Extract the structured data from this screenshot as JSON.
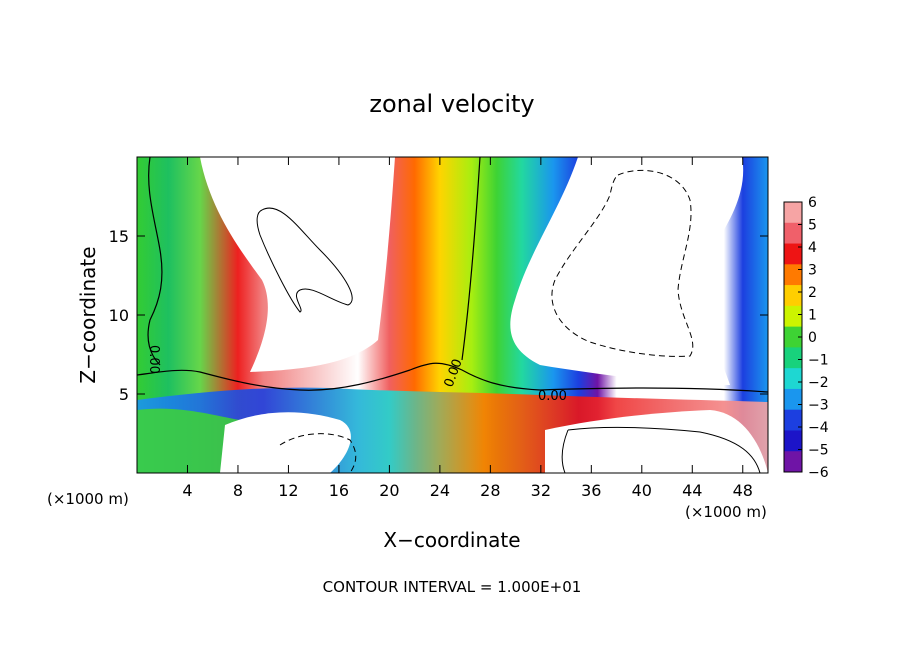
{
  "chart_data": {
    "type": "heatmap",
    "title": "zonal velocity",
    "xlabel": "X−coordinate",
    "ylabel": "Z−coordinate",
    "x_unit_left": "(×1000 m)",
    "x_unit_right": "(×1000 m)",
    "footer": "CONTOUR INTERVAL = 1.000E+01",
    "xlim": [
      0,
      50
    ],
    "ylim": [
      0,
      20
    ],
    "x_ticks": [
      4,
      8,
      12,
      16,
      20,
      24,
      28,
      32,
      36,
      40,
      44,
      48
    ],
    "y_ticks": [
      5,
      10,
      15
    ],
    "colorbar": {
      "range": [
        -6,
        6
      ],
      "ticks": [
        6,
        5,
        4,
        3,
        2,
        1,
        0,
        -1,
        -2,
        -3,
        -4,
        -5,
        -6
      ],
      "tick_labels": [
        "6",
        "5",
        "4",
        "3",
        "2",
        "1",
        "0",
        "−1",
        "−2",
        "−3",
        "−4",
        "−5",
        "−6"
      ],
      "colors": [
        "#f6a4a4",
        "#f0606a",
        "#ee1414",
        "#ff7a00",
        "#ffce00",
        "#ccf400",
        "#3ed334",
        "#18d27c",
        "#1ed7d2",
        "#1a96ee",
        "#1c3fe0",
        "#1c14c8",
        "#6f14a6"
      ]
    },
    "contour_labels": [
      "0.00",
      "0.00",
      "0.00"
    ]
  }
}
